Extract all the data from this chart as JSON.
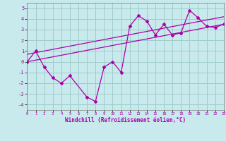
{
  "xlabel": "Windchill (Refroidissement éolien,°C)",
  "bg_color": "#c8eaec",
  "grid_color": "#a0cccc",
  "line_color": "#aa00aa",
  "xlim": [
    0,
    23
  ],
  "ylim": [
    -4.5,
    5.5
  ],
  "xticks": [
    0,
    1,
    2,
    3,
    4,
    5,
    6,
    7,
    8,
    9,
    10,
    11,
    12,
    13,
    14,
    15,
    16,
    17,
    18,
    19,
    20,
    21,
    22,
    23
  ],
  "yticks": [
    -4,
    -3,
    -2,
    -1,
    0,
    1,
    2,
    3,
    4,
    5
  ],
  "data_x": [
    0,
    1,
    2,
    3,
    4,
    5,
    7,
    8,
    9,
    10,
    11,
    12,
    13,
    14,
    15,
    16,
    17,
    18,
    19,
    20,
    21,
    22,
    23
  ],
  "data_y": [
    0.0,
    1.0,
    -0.5,
    -1.5,
    -2.0,
    -1.3,
    -3.3,
    -3.7,
    -0.5,
    0.0,
    -1.0,
    3.3,
    4.3,
    3.8,
    2.5,
    3.5,
    2.5,
    2.7,
    4.8,
    4.1,
    3.3,
    3.2,
    3.5
  ],
  "line1_x": [
    0,
    23
  ],
  "line1_y": [
    0.0,
    3.5
  ],
  "line2_x": [
    0,
    23
  ],
  "line2_y": [
    0.7,
    4.2
  ]
}
